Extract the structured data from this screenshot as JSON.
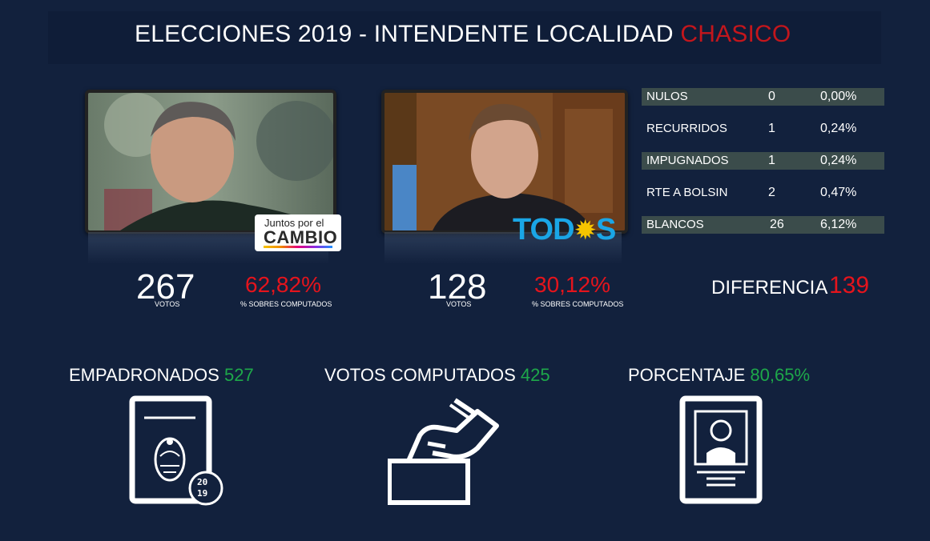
{
  "title": {
    "prefix": "ELECCIONES 2019 - INTENDENTE LOCALIDAD",
    "locality": "CHASICO"
  },
  "candidates": [
    {
      "party_logo_line1": "Juntos por el",
      "party_logo_line2": "CAMBIO",
      "votes": "267",
      "votes_label": "VOTOS",
      "percent": "62,82%",
      "percent_label": "% SOBRES COMPUTADOS"
    },
    {
      "party_logo_text_a": "TOD",
      "party_logo_sun": "✹",
      "party_logo_text_b": "S",
      "votes": "128",
      "votes_label": "VOTOS",
      "percent": "30,12%",
      "percent_label": "% SOBRES COMPUTADOS"
    }
  ],
  "stats": [
    {
      "name": "NULOS",
      "count": "0",
      "percent": "0,00%"
    },
    {
      "name": "RECURRIDOS",
      "count": "1",
      "percent": "0,24%"
    },
    {
      "name": "IMPUGNADOS",
      "count": "1",
      "percent": "0,24%"
    },
    {
      "name": "RTE A BOLSIN",
      "count": "2",
      "percent": "0,47%"
    },
    {
      "name": "BLANCOS",
      "count": "26",
      "percent": "6,12%"
    }
  ],
  "difference": {
    "label": "DIFERENCIA",
    "value": "139"
  },
  "totals": {
    "registered": {
      "label": "EMPADRONADOS",
      "value": "527"
    },
    "counted": {
      "label": "VOTOS COMPUTADOS",
      "value": "425"
    },
    "percentage": {
      "label": "PORCENTAJE",
      "value": "80,65%"
    }
  },
  "icons": {
    "registered": "voter-registry-icon",
    "counted": "ballot-box-icon",
    "percentage": "id-card-icon",
    "registry_year_top": "20",
    "registry_year_bottom": "19"
  },
  "colors": {
    "background": "#12213d",
    "accent_red": "#e5141c",
    "accent_green": "#1ea84a",
    "row_shade": "#3b4c4b"
  }
}
